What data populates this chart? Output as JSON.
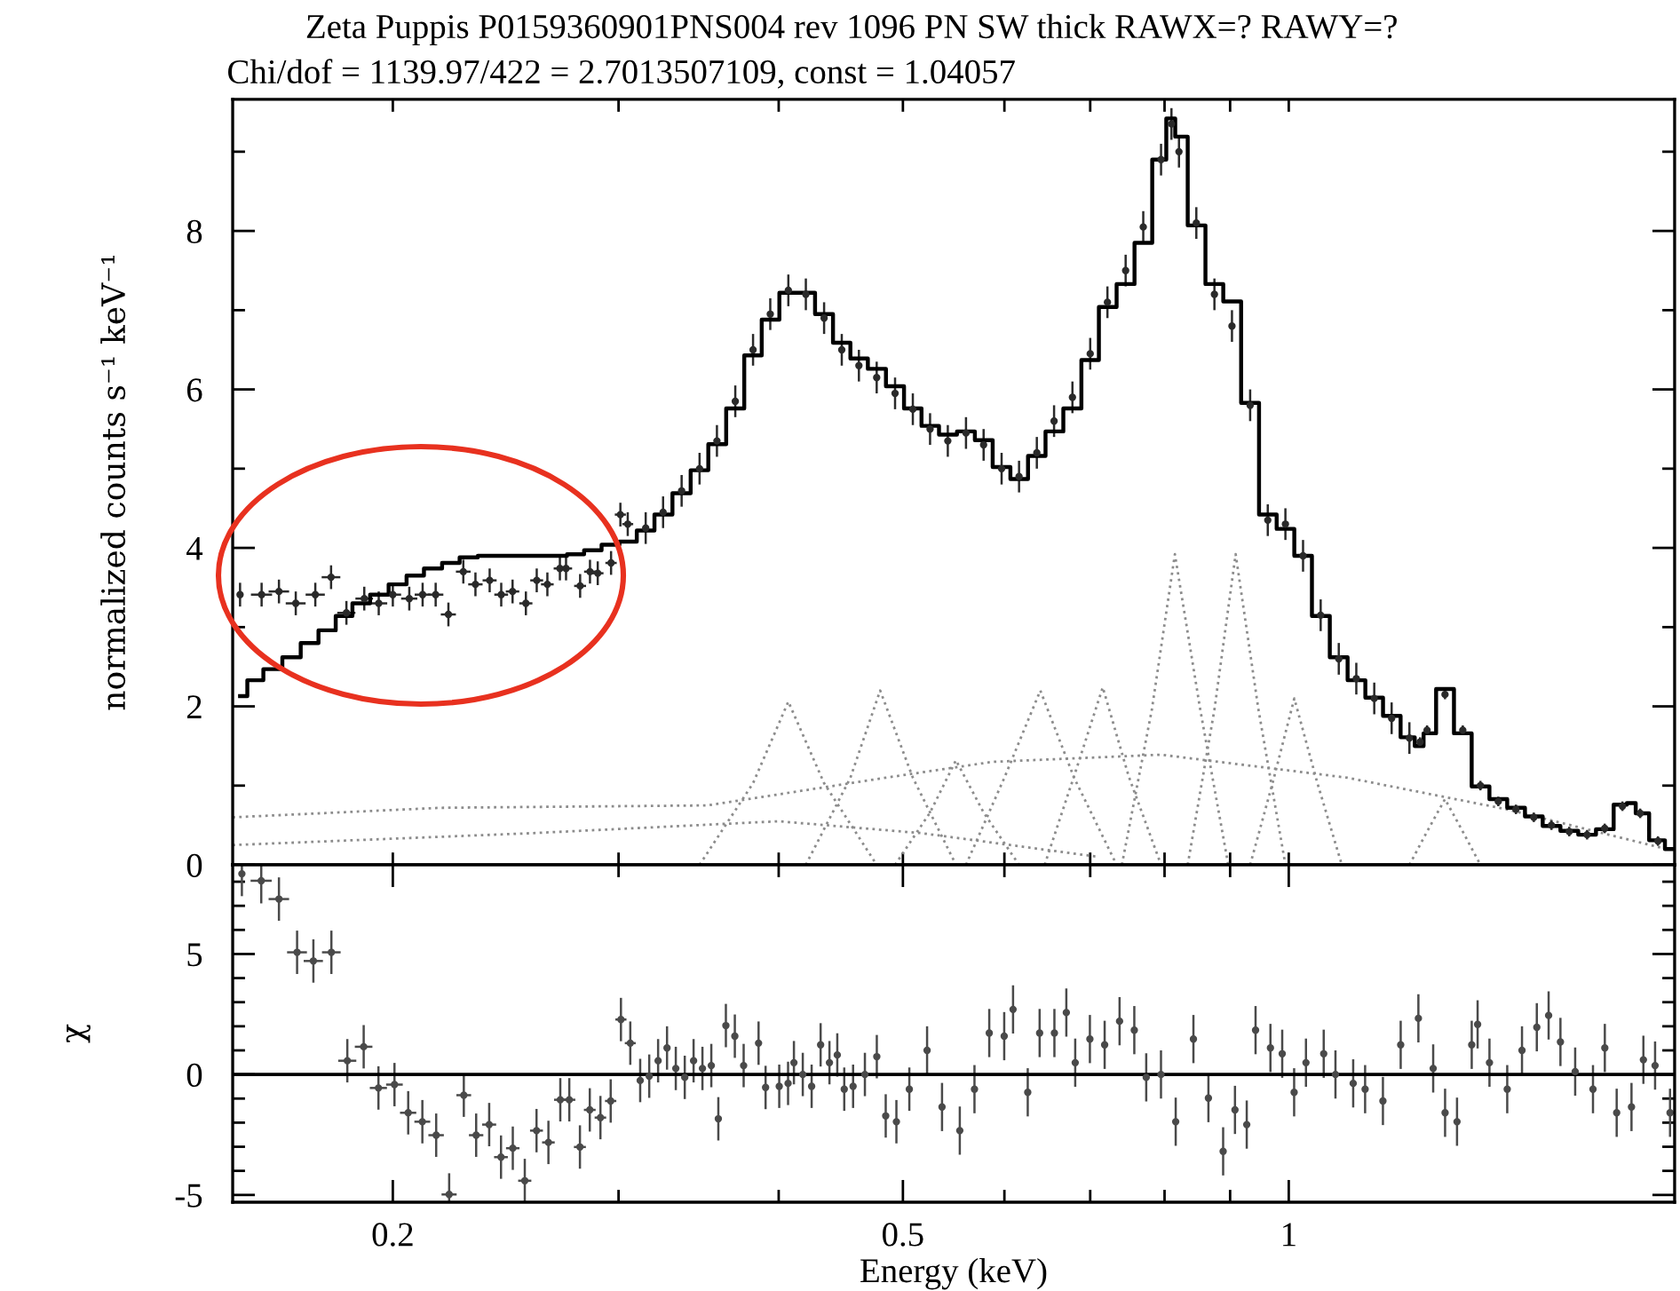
{
  "chart_data": [
    {
      "type": "scatter",
      "title": "Zeta Puppis P0159360901PNS004 rev 1096 PN SW thick RAWX=? RAWY=?",
      "subtitle": "Chi/dof = 1139.97/422 = 2.7013507109, const = 1.04057",
      "ylabel": "normalized counts s⁻¹ keV⁻¹",
      "log": "x",
      "xlim": [
        0.15,
        2.0
      ],
      "ylim": [
        0,
        9.66
      ],
      "xticks": [
        {
          "value": 0.2,
          "label": null
        },
        {
          "value": 0.3,
          "label": null
        },
        {
          "value": 0.4,
          "label": null
        },
        {
          "value": 0.5,
          "label": null
        },
        {
          "value": 0.6,
          "label": null
        },
        {
          "value": 0.7,
          "label": null
        },
        {
          "value": 0.8,
          "label": null
        },
        {
          "value": 0.9,
          "label": null
        },
        {
          "value": 1,
          "label": null
        }
      ],
      "yticks": [
        0,
        {
          "value": 1,
          "label": null
        },
        2,
        {
          "value": 3,
          "label": null
        },
        4,
        {
          "value": 5,
          "label": null
        },
        6,
        {
          "value": 7,
          "label": null
        },
        8,
        {
          "value": 9,
          "label": null
        }
      ],
      "tick_labels": "y",
      "series": [
        {
          "type": "line",
          "line_style": "dotted",
          "color": "#8c8c8c",
          "x": [
            0.15,
            0.218,
            0.352,
            0.485,
            0.587,
            0.795,
            1.111,
            1.48,
            1.97
          ],
          "values": [
            0.6,
            0.72,
            0.75,
            1.1,
            1.3,
            1.39,
            1.1,
            0.7,
            0.2
          ]
        },
        {
          "type": "line",
          "line_style": "dotted",
          "color": "#8c8c8c",
          "x": [
            0.15,
            0.257,
            0.4,
            0.517,
            0.711
          ],
          "values": [
            0.25,
            0.4,
            0.55,
            0.4,
            0.1
          ]
        },
        {
          "type": "line",
          "line_style": "dotted",
          "color": "#8c8c8c",
          "x": [
            0.347,
            0.382,
            0.407,
            0.434,
            0.477
          ],
          "values": [
            0,
            1.03,
            2.06,
            1.03,
            0
          ]
        },
        {
          "type": "line",
          "line_style": "dotted",
          "color": "#8c8c8c",
          "x": [
            0.42,
            0.455,
            0.48,
            0.509,
            0.55
          ],
          "values": [
            0,
            1.1,
            2.2,
            1.1,
            0
          ]
        },
        {
          "type": "line",
          "line_style": "dotted",
          "color": "#8c8c8c",
          "x": [
            0.493,
            0.525,
            0.55,
            0.578,
            0.616
          ],
          "values": [
            0,
            0.66,
            1.32,
            0.66,
            0
          ]
        },
        {
          "type": "line",
          "line_style": "dotted",
          "color": "#8c8c8c",
          "x": [
            0.56,
            0.6,
            0.64,
            0.68,
            0.734
          ],
          "values": [
            0,
            1.1,
            2.2,
            1.1,
            0
          ]
        },
        {
          "type": "line",
          "line_style": "dotted",
          "color": "#8c8c8c",
          "x": [
            0.645,
            0.68,
            0.716,
            0.75,
            0.795
          ],
          "values": [
            0,
            1.12,
            2.24,
            1.12,
            0
          ]
        },
        {
          "type": "line",
          "line_style": "dotted",
          "color": "#8c8c8c",
          "x": [
            0.741,
            0.782,
            0.815,
            0.853,
            0.897
          ],
          "values": [
            0,
            1.96,
            3.92,
            1.96,
            0
          ]
        },
        {
          "type": "line",
          "line_style": "dotted",
          "color": "#8c8c8c",
          "x": [
            0.834,
            0.875,
            0.909,
            0.947,
            0.994
          ],
          "values": [
            0,
            1.96,
            3.92,
            1.96,
            0
          ]
        },
        {
          "type": "line",
          "line_style": "dotted",
          "color": "#8c8c8c",
          "x": [
            0.933,
            0.972,
            1.01,
            1.052,
            1.1
          ],
          "values": [
            0,
            1.05,
            2.1,
            1.05,
            0
          ]
        },
        {
          "type": "line",
          "line_style": "dotted",
          "color": "#8c8c8c",
          "x": [
            1.242,
            1.282,
            1.324,
            1.367,
            1.411
          ],
          "values": [
            0,
            0.42,
            0.83,
            0.42,
            0
          ]
        },
        {
          "type": "scatter",
          "marker": "circle",
          "color": "#2a2a2a",
          "x": [
            0.152,
            0.158,
            0.163,
            0.168,
            0.174,
            0.179,
            0.184,
            0.19,
            0.195,
            0.2,
            0.206,
            0.211,
            0.216,
            0.221,
            0.227,
            0.232,
            0.238,
            0.243,
            0.248,
            0.254,
            0.259,
            0.264,
            0.27,
            0.273,
            0.28,
            0.285,
            0.289,
            0.296,
            0.301,
            0.305,
            0.315,
            0.325,
            0.336,
            0.347,
            0.358,
            0.37,
            0.382,
            0.394,
            0.407,
            0.42,
            0.434,
            0.448,
            0.462,
            0.477,
            0.493,
            0.509,
            0.525,
            0.542,
            0.56,
            0.578,
            0.597,
            0.616,
            0.636,
            0.656,
            0.678,
            0.7,
            0.722,
            0.746,
            0.77,
            0.795,
            0.81,
            0.821,
            0.847,
            0.875,
            0.903,
            0.933,
            0.963,
            0.994,
            1.026,
            1.059,
            1.094,
            1.129,
            1.166,
            1.203,
            1.242,
            1.266,
            1.282,
            1.324,
            1.367,
            1.411,
            1.457,
            1.504,
            1.553,
            1.603,
            1.655,
            1.709,
            1.764,
            1.821,
            1.88,
            1.941
          ],
          "values": [
            3.41,
            3.41,
            3.45,
            3.3,
            3.41,
            3.63,
            3.18,
            3.36,
            3.3,
            3.41,
            3.36,
            3.41,
            3.41,
            3.16,
            3.7,
            3.54,
            3.59,
            3.41,
            3.45,
            3.3,
            3.59,
            3.54,
            3.74,
            3.74,
            3.52,
            3.7,
            3.68,
            3.81,
            4.42,
            4.3,
            4.25,
            4.45,
            4.72,
            5.0,
            5.35,
            5.85,
            6.5,
            6.95,
            7.25,
            7.2,
            6.9,
            6.5,
            6.3,
            6.15,
            5.95,
            5.75,
            5.5,
            5.35,
            5.45,
            5.3,
            5.0,
            4.9,
            5.2,
            5.6,
            5.9,
            6.45,
            7.1,
            7.5,
            8.05,
            8.9,
            9.35,
            9.0,
            8.1,
            7.2,
            6.8,
            5.8,
            4.35,
            4.3,
            3.9,
            3.15,
            2.6,
            2.35,
            2.1,
            1.85,
            1.6,
            1.55,
            1.7,
            2.15,
            1.7,
            1.0,
            0.8,
            0.7,
            0.6,
            0.5,
            0.42,
            0.38,
            0.46,
            0.74,
            0.65,
            0.3
          ],
          "errors": [
            0.15,
            0.15,
            0.15,
            0.15,
            0.15,
            0.15,
            0.15,
            0.15,
            0.15,
            0.15,
            0.15,
            0.15,
            0.15,
            0.15,
            0.15,
            0.15,
            0.15,
            0.15,
            0.15,
            0.15,
            0.15,
            0.15,
            0.15,
            0.15,
            0.15,
            0.15,
            0.15,
            0.15,
            0.15,
            0.15,
            0.2,
            0.2,
            0.2,
            0.2,
            0.2,
            0.2,
            0.2,
            0.2,
            0.2,
            0.2,
            0.2,
            0.2,
            0.2,
            0.2,
            0.2,
            0.2,
            0.2,
            0.2,
            0.2,
            0.2,
            0.2,
            0.2,
            0.2,
            0.2,
            0.2,
            0.2,
            0.2,
            0.2,
            0.2,
            0.2,
            0.2,
            0.2,
            0.2,
            0.2,
            0.2,
            0.2,
            0.2,
            0.2,
            0.2,
            0.2,
            0.2,
            0.2,
            0.2,
            0.2,
            0.2,
            0.06,
            0.06,
            0.06,
            0.06,
            0.06,
            0.06,
            0.06,
            0.06,
            0.06,
            0.06,
            0.06,
            0.06,
            0.06,
            0.06,
            0.06
          ],
          "xerrors": [
            null,
            0.003,
            0.003,
            0.003,
            0.003,
            0.003,
            0.003,
            0.003,
            0.003,
            0.003,
            0.003,
            0.003,
            0.003,
            0.003,
            0.003,
            0.003,
            0.003,
            0.003,
            0.003,
            0.003,
            0.003,
            0.003,
            0.003,
            0.003,
            0.003,
            0.003,
            0.003,
            0.003,
            0.003,
            0.003,
            null,
            null,
            null,
            null,
            null,
            null,
            null,
            null,
            null,
            null,
            null,
            null,
            null,
            null,
            null,
            null,
            null,
            null,
            null,
            null,
            null,
            null,
            null,
            null,
            null,
            null,
            null,
            null,
            null,
            null,
            null,
            null,
            null,
            null,
            null,
            null,
            null,
            null,
            null,
            null,
            null,
            null,
            null,
            null,
            null,
            null,
            null,
            null,
            null,
            null,
            null,
            null,
            null,
            null,
            null,
            null,
            null,
            null,
            null,
            null
          ]
        },
        {
          "type": "step",
          "color": "#000000",
          "x": [
            0.152,
            0.156,
            0.161,
            0.167,
            0.172,
            0.178,
            0.183,
            0.189,
            0.195,
            0.202,
            0.208,
            0.215,
            0.222,
            0.229,
            0.237,
            0.244,
            0.252,
            0.26,
            0.269,
            0.278,
            0.286,
            0.296,
            0.305,
            0.315,
            0.325,
            0.336,
            0.347,
            0.358,
            0.37,
            0.382,
            0.394,
            0.407,
            0.42,
            0.434,
            0.448,
            0.462,
            0.477,
            0.493,
            0.509,
            0.525,
            0.542,
            0.56,
            0.578,
            0.597,
            0.616,
            0.636,
            0.656,
            0.678,
            0.7,
            0.722,
            0.746,
            0.77,
            0.795,
            0.81,
            0.821,
            0.847,
            0.875,
            0.903,
            0.933,
            0.963,
            0.994,
            1.026,
            1.059,
            1.094,
            1.129,
            1.166,
            1.203,
            1.242,
            1.266,
            1.282,
            1.324,
            1.367,
            1.411,
            1.457,
            1.504,
            1.553,
            1.603,
            1.655,
            1.709,
            1.764,
            1.821,
            1.85,
            1.88,
            1.941,
            1.99
          ],
          "values": [
            2.13,
            2.33,
            2.47,
            2.62,
            2.8,
            2.96,
            3.14,
            3.3,
            3.41,
            3.54,
            3.65,
            3.74,
            3.81,
            3.88,
            3.9,
            3.9,
            3.9,
            3.9,
            3.9,
            3.92,
            3.97,
            4.04,
            4.08,
            4.22,
            4.42,
            4.69,
            4.98,
            5.31,
            5.76,
            6.43,
            6.88,
            7.22,
            7.22,
            6.95,
            6.59,
            6.39,
            6.26,
            6.04,
            5.76,
            5.54,
            5.43,
            5.47,
            5.36,
            5.02,
            4.87,
            5.16,
            5.47,
            5.76,
            6.37,
            7.04,
            7.33,
            7.85,
            8.9,
            9.42,
            9.19,
            8.07,
            7.33,
            7.11,
            5.83,
            4.42,
            4.24,
            3.9,
            3.14,
            2.62,
            2.33,
            2.11,
            1.88,
            1.61,
            1.5,
            1.66,
            2.22,
            1.66,
            0.99,
            0.83,
            0.72,
            0.61,
            0.49,
            0.43,
            0.38,
            0.45,
            0.76,
            0.78,
            0.65,
            0.31,
            0.2
          ]
        }
      ]
    },
    {
      "type": "scatter",
      "xlabel": "Energy (keV)",
      "ylabel": "χ",
      "log": "x",
      "xlim": [
        0.15,
        2.0
      ],
      "ylim": [
        -5.3,
        8.7
      ],
      "xticks": [
        0.2,
        {
          "value": 0.3,
          "label": null
        },
        {
          "value": 0.4,
          "label": null
        },
        0.5,
        {
          "value": 0.6,
          "label": null
        },
        {
          "value": 0.7,
          "label": null
        },
        {
          "value": 0.8,
          "label": null
        },
        {
          "value": 0.9,
          "label": null
        },
        1
      ],
      "yticks": [
        -5,
        {
          "value": -4,
          "label": null
        },
        {
          "value": -3,
          "label": null
        },
        {
          "value": -2,
          "label": null
        },
        {
          "value": -1,
          "label": null
        },
        0,
        {
          "value": 1,
          "label": null
        },
        {
          "value": 2,
          "label": null
        },
        {
          "value": 3,
          "label": null
        },
        {
          "value": 4,
          "label": null
        },
        5,
        {
          "value": 6,
          "label": null
        },
        {
          "value": 7,
          "label": null
        },
        {
          "value": 8,
          "label": null
        }
      ],
      "ref_lines": [
        {
          "axis": "y",
          "value": 0,
          "color": "#000000"
        }
      ],
      "series": [
        {
          "marker": "circle",
          "color": "#4a4a4a",
          "x": [
            0.1525,
            0.1579,
            0.163,
            0.1684,
            0.1734,
            0.1791,
            0.1843,
            0.1898,
            0.1949,
            0.2006,
            0.2056,
            0.2109,
            0.2162,
            0.2213,
            0.2272,
            0.2323,
            0.2378,
            0.2429,
            0.2481,
            0.2535,
            0.2589,
            0.2645,
            0.2702,
            0.2746,
            0.2799,
            0.2849,
            0.2904,
            0.2958,
            0.3013,
            0.3064,
            0.3119,
            0.317,
            0.3221,
            0.3273,
            0.3325,
            0.3379,
            0.3433,
            0.3488,
            0.3544,
            0.3589,
            0.3638,
            0.3697,
            0.3756,
            0.3858,
            0.3907,
            0.4004,
            0.4068,
            0.4111,
            0.4177,
            0.4244,
            0.4313,
            0.4382,
            0.4444,
            0.45,
            0.4572,
            0.467,
            0.4771,
            0.4848,
            0.4942,
            0.5058,
            0.5222,
            0.5364,
            0.5538,
            0.5686,
            0.5839,
            0.5998,
            0.6094,
            0.6257,
            0.6392,
            0.6564,
            0.6706,
            0.6814,
            0.6996,
            0.7184,
            0.7379,
            0.7577,
            0.7741,
            0.7949,
            0.8162,
            0.8426,
            0.8656,
            0.8888,
            0.9079,
            0.9273,
            0.9421,
            0.9676,
            0.9883,
            1.0097,
            1.0314,
            1.0648,
            1.0875,
            1.1227,
            1.147,
            1.1843,
            1.2227,
            1.2622,
            1.2962,
            1.3242,
            1.3529,
            1.3891,
            1.4039,
            1.4341,
            1.4806,
            1.5204,
            1.5614,
            1.5949,
            1.6291,
            1.6728,
            1.7272,
            1.7643,
            1.8023,
            1.8509,
            1.8909,
            1.931,
            1.9836
          ],
          "values": [
            8.33,
            8.04,
            7.28,
            5.07,
            4.71,
            5.07,
            0.57,
            1.15,
            -0.56,
            -0.42,
            -1.59,
            -1.96,
            -2.52,
            -4.98,
            -0.86,
            -2.52,
            -2.08,
            -3.43,
            -3.06,
            -4.41,
            -2.33,
            -2.82,
            -1.05,
            -1.05,
            -3.01,
            -1.47,
            -1.79,
            -1.1,
            2.28,
            1.3,
            -0.25,
            -0.07,
            0.57,
            1.1,
            0.25,
            -0.12,
            0.57,
            0.25,
            0.37,
            -1.84,
            2.03,
            1.59,
            0.37,
            1.3,
            -0.54,
            -0.49,
            -0.37,
            0.49,
            0,
            -0.49,
            1.23,
            0.49,
            0.81,
            -0.61,
            -0.49,
            0,
            0.74,
            -1.72,
            -1.96,
            -0.61,
            1.0,
            -1.35,
            -2.33,
            -0.61,
            1.72,
            1.59,
            2.7,
            -0.74,
            1.72,
            1.72,
            2.57,
            0.49,
            1.47,
            1.23,
            2.21,
            1.84,
            -0.12,
            0,
            -1.96,
            1.47,
            -0.98,
            -3.19,
            -1.47,
            -2.08,
            1.84,
            1.1,
            0.86,
            -0.74,
            0.49,
            0.86,
            0,
            -0.37,
            -0.61,
            -1.1,
            1.23,
            2.33,
            0.25,
            -1.59,
            -1.96,
            1.23,
            2.08,
            0.49,
            -0.61,
            1.0,
            1.96,
            2.45,
            1.35,
            0.12,
            -0.61,
            1.1,
            -1.59,
            -1.35,
            0.61,
            0.37,
            -1.59
          ],
          "errors": [
            [
              7.4,
              8.7
            ],
            [
              7.1,
              8.7
            ],
            0.9,
            0.9,
            0.9,
            0.9,
            0.9,
            0.9,
            0.9,
            0.9,
            0.9,
            0.9,
            0.9,
            [
              -5.3,
              -4.1
            ],
            0.9,
            0.9,
            0.9,
            0.9,
            0.9,
            [
              -5.3,
              -3.5
            ],
            0.9,
            0.9,
            0.9,
            0.9,
            0.9,
            0.9,
            0.9,
            0.9,
            0.9,
            0.9,
            0.9,
            0.9,
            0.9,
            0.9,
            0.9,
            0.9,
            0.9,
            0.9,
            0.9,
            0.9,
            0.9,
            0.9,
            0.9,
            0.9,
            0.9,
            0.9,
            0.9,
            0.9,
            0.9,
            0.9,
            0.9,
            0.9,
            0.9,
            0.9,
            0.9,
            0.9,
            0.9,
            0.9,
            0.9,
            0.9,
            1,
            1,
            1,
            1,
            1,
            1,
            1,
            1,
            1,
            1,
            1,
            1,
            1,
            1,
            1,
            1,
            1,
            1,
            1,
            1,
            1,
            1,
            1,
            1,
            1,
            1,
            1,
            1,
            1,
            1,
            1,
            1,
            1,
            1,
            1,
            1,
            1,
            1,
            1,
            1,
            1,
            1,
            1,
            1,
            1,
            1,
            1,
            1,
            1,
            1,
            1,
            1,
            1,
            1,
            1
          ],
          "xerrors": [
            null,
            0.003,
            0.003,
            0.003,
            0.003,
            0.003,
            0.003,
            0.003,
            0.003,
            0.003,
            0.003,
            0.003,
            0.003,
            0.003,
            0.003,
            0.003,
            0.003,
            0.003,
            0.003,
            0.003,
            0.003,
            0.003,
            0.003,
            0.003,
            0.003,
            0.003,
            0.003,
            0.003,
            0.003,
            0.003,
            null,
            null,
            null,
            null,
            null,
            null,
            null,
            null,
            null,
            null,
            null,
            null,
            null,
            null,
            null,
            null,
            null,
            null,
            null,
            null,
            null,
            null,
            null,
            null,
            null,
            null,
            null,
            null,
            null,
            null,
            null,
            null,
            null,
            null,
            null,
            null,
            null,
            null,
            null,
            null,
            null,
            null,
            null,
            null,
            null,
            null,
            null,
            null,
            null,
            null,
            null,
            null,
            null,
            null,
            null,
            null,
            null,
            null,
            null,
            null,
            null,
            null,
            null,
            null,
            null,
            null,
            null,
            null,
            null,
            null,
            null,
            null,
            null,
            null,
            null,
            null,
            null,
            null,
            null,
            null,
            null,
            null,
            null,
            null,
            null
          ]
        }
      ]
    }
  ]
}
